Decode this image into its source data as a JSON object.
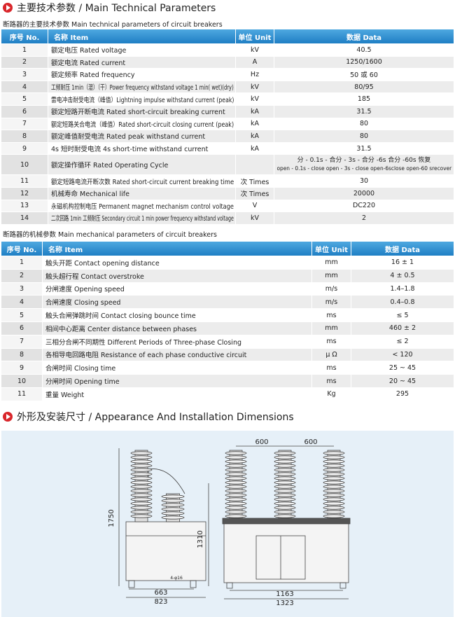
{
  "section1": {
    "title": "主要技术参数 / Main Technical Parameters"
  },
  "table1": {
    "caption": "断路器的主要技术参数 Main technical parameters of circuit breakers",
    "columns": [
      "序号 No.",
      "名称 Item",
      "单位 Unit",
      "数据 Data"
    ],
    "rows": [
      {
        "no": "1",
        "item": "额定电压 Rated voltage",
        "unit": "kV",
        "data": "40.5"
      },
      {
        "no": "2",
        "item": "额定电流 Rated current",
        "unit": "A",
        "data": "1250/1600"
      },
      {
        "no": "3",
        "item": "额定频率 Rated frequency",
        "unit": "Hz",
        "data": "50 或 60"
      },
      {
        "no": "4",
        "item": "工频耐压 1min（湿）（干）Power frequency withstand voltage 1 min( wet)(dry)",
        "unit": "kV",
        "data": "80/95"
      },
      {
        "no": "5",
        "item": "雷电冲击耐受电流（峰值）Lightning impulse withstand current (peak)",
        "unit": "kV",
        "data": "185"
      },
      {
        "no": "6",
        "item": "额定短路开断电流 Rated short-circuit breaking current",
        "unit": "kA",
        "data": "31.5"
      },
      {
        "no": "7",
        "item": "额定短路关合电流（峰值）Rated short-circuit closing current (peak)",
        "unit": "kA",
        "data": "80"
      },
      {
        "no": "8",
        "item": "额定峰值耐受电流 Rated peak withstand current",
        "unit": "kA",
        "data": "80"
      },
      {
        "no": "9",
        "item": "4s 短时耐受电流 4s short-time withstand current",
        "unit": "kA",
        "data": "31.5"
      },
      {
        "no": "10",
        "item": "额定操作循环 Rated Operating Cycle",
        "data": [
          "分 - 0.1s - 合分 - 3s - 合分 -6s 合分 -60s 恢复",
          "open - 0.1s - close open - 3s - close open-6sclose open-60 srecover"
        ]
      },
      {
        "no": "11",
        "item": "额定短路电流开断次数 Rated short-circuit current breaking time",
        "unit": "次 Times",
        "data": "30"
      },
      {
        "no": "12",
        "item": "机械寿命 Mechanical life",
        "unit": "次 Times",
        "data": "20000"
      },
      {
        "no": "13",
        "item": "永磁机构控制电压 Permanent magnet mechanism control voltage",
        "unit": "V",
        "data": "DC220"
      },
      {
        "no": "14",
        "item": "二次回路 1min 工频耐压 Secondary circuit 1 min power frequency withstand voltage",
        "unit": "kV",
        "data": "2"
      }
    ]
  },
  "table2": {
    "caption": "断路器的机械参数 Main mechanical parameters of circuit breakers",
    "columns": [
      "序号 No.",
      "名称 Item",
      "单位 Unit",
      "数据 Data"
    ],
    "rows": [
      {
        "no": "1",
        "item": "触头开距 Contact opening distance",
        "unit": "mm",
        "data": "16 ± 1"
      },
      {
        "no": "2",
        "item": "触头超行程 Contact overstroke",
        "unit": "mm",
        "data": "4 ± 0.5"
      },
      {
        "no": "3",
        "item": "分闸速度 Opening speed",
        "unit": "m/s",
        "data": "1.4–1.8"
      },
      {
        "no": "4",
        "item": "合闸速度 Closing speed",
        "unit": "m/s",
        "data": "0.4–0.8"
      },
      {
        "no": "5",
        "item": "触头合闸弹跳时间 Contact closing bounce time",
        "unit": "ms",
        "data": "≤ 5"
      },
      {
        "no": "6",
        "item": "相间中心距离 Center distance between phases",
        "unit": "mm",
        "data": "460 ± 2"
      },
      {
        "no": "7",
        "item": "三相分合闸不同期性 Different Periods of Three-phase Closing",
        "unit": "ms",
        "data": "≤ 2"
      },
      {
        "no": "8",
        "item": "各相导电回路电阻 Resistance of each phase conductive circuit",
        "unit": "μ Ω",
        "data": "< 120"
      },
      {
        "no": "9",
        "item": "合闸时间 Closing time",
        "unit": "ms",
        "data": "25 ~ 45"
      },
      {
        "no": "10",
        "item": "分闸时间 Opening time",
        "unit": "ms",
        "data": "20 ~ 45"
      },
      {
        "no": "11",
        "item": "重量 Weight",
        "unit": "Kg",
        "data": "295"
      }
    ]
  },
  "section2": {
    "title": "外形及安装尺寸 / Appearance And Installation Dimensions"
  },
  "drawing": {
    "side_view": {
      "height_total": "1750",
      "height_base": "1310",
      "width_inner": "663",
      "width_outer": "823",
      "holes": "4-φ16"
    },
    "front_view": {
      "pitch_left": "600",
      "pitch_right": "600",
      "width_inner": "1163",
      "width_outer": "1323"
    }
  }
}
